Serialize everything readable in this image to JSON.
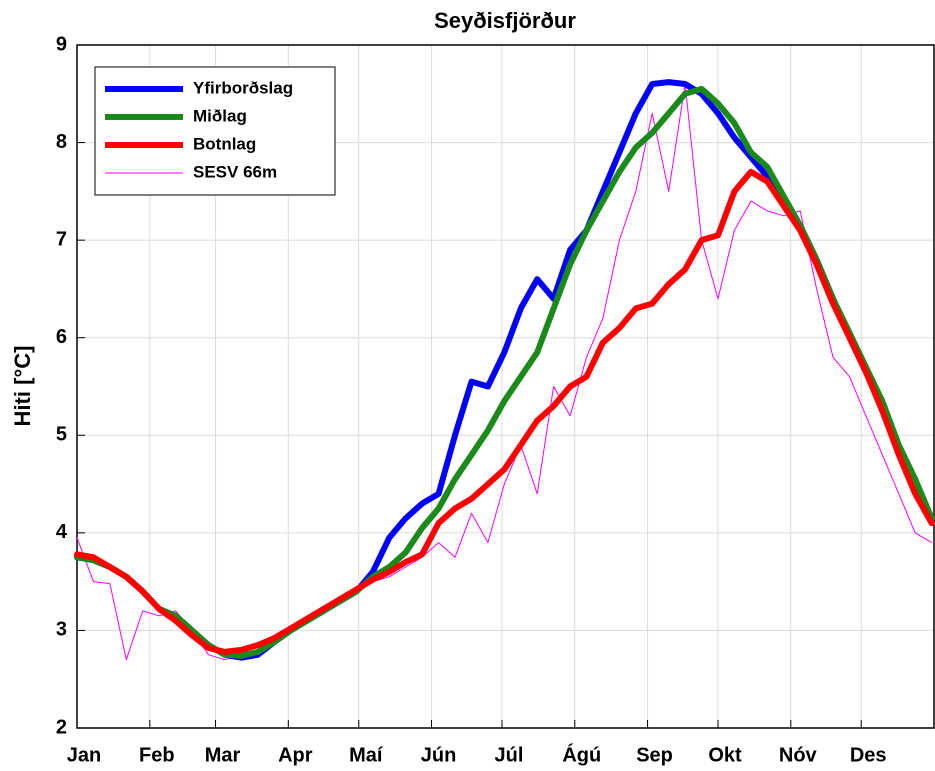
{
  "chart_data": {
    "type": "line",
    "title": "Seyðisfjörður",
    "ylabel": "Hiti [°C]",
    "x": [
      1,
      8,
      15,
      22,
      29,
      36,
      43,
      50,
      57,
      64,
      71,
      78,
      85,
      92,
      99,
      106,
      113,
      120,
      127,
      134,
      141,
      148,
      155,
      162,
      169,
      176,
      183,
      190,
      197,
      204,
      211,
      218,
      225,
      232,
      239,
      246,
      253,
      260,
      267,
      274,
      281,
      288,
      295,
      302,
      309,
      316,
      323,
      330,
      337,
      344,
      351,
      358,
      365
    ],
    "series": [
      {
        "name": "Yfirborðslag",
        "color": "#0000ff",
        "width": 6,
        "values": [
          3.75,
          3.72,
          3.65,
          3.55,
          3.4,
          3.22,
          3.15,
          3.0,
          2.85,
          2.75,
          2.72,
          2.75,
          2.88,
          3.0,
          3.1,
          3.2,
          3.3,
          3.4,
          3.6,
          3.95,
          4.15,
          4.3,
          4.4,
          5.0,
          5.55,
          5.5,
          5.85,
          6.3,
          6.6,
          6.4,
          6.9,
          7.1,
          7.5,
          7.9,
          8.3,
          8.6,
          8.62,
          8.6,
          8.5,
          8.3,
          8.05,
          7.85,
          7.65,
          7.4,
          7.15,
          6.8,
          6.4,
          6.0,
          5.65,
          5.3,
          4.85,
          4.5,
          4.15
        ]
      },
      {
        "name": "Miðlag",
        "color": "#1a8a1a",
        "width": 6,
        "values": [
          3.75,
          3.72,
          3.65,
          3.55,
          3.4,
          3.22,
          3.15,
          3.0,
          2.85,
          2.75,
          2.74,
          2.78,
          2.88,
          3.0,
          3.1,
          3.2,
          3.3,
          3.4,
          3.55,
          3.65,
          3.8,
          4.05,
          4.25,
          4.55,
          4.8,
          5.05,
          5.35,
          5.6,
          5.85,
          6.3,
          6.75,
          7.1,
          7.4,
          7.7,
          7.95,
          8.1,
          8.3,
          8.5,
          8.55,
          8.4,
          8.2,
          7.9,
          7.75,
          7.45,
          7.15,
          6.8,
          6.4,
          6.05,
          5.7,
          5.35,
          4.9,
          4.55,
          4.15
        ]
      },
      {
        "name": "Botnlag",
        "color": "#ff0000",
        "width": 6,
        "values": [
          3.78,
          3.75,
          3.65,
          3.55,
          3.4,
          3.22,
          3.1,
          2.95,
          2.82,
          2.78,
          2.8,
          2.85,
          2.92,
          3.02,
          3.12,
          3.22,
          3.32,
          3.42,
          3.52,
          3.6,
          3.7,
          3.78,
          4.1,
          4.25,
          4.35,
          4.5,
          4.65,
          4.9,
          5.15,
          5.3,
          5.5,
          5.6,
          5.95,
          6.1,
          6.3,
          6.35,
          6.55,
          6.7,
          7.0,
          7.05,
          7.5,
          7.7,
          7.6,
          7.35,
          7.1,
          6.75,
          6.35,
          6.0,
          5.65,
          5.25,
          4.8,
          4.4,
          4.1
        ]
      },
      {
        "name": "SESV 66m",
        "color": "#ff00ff",
        "width": 1,
        "values": [
          3.95,
          3.5,
          3.48,
          2.7,
          3.2,
          3.15,
          3.2,
          3.0,
          2.75,
          2.7,
          2.75,
          2.85,
          2.95,
          3.05,
          3.1,
          3.2,
          3.3,
          3.4,
          3.5,
          3.55,
          3.65,
          3.75,
          3.9,
          3.75,
          4.2,
          3.9,
          4.5,
          4.9,
          4.4,
          5.5,
          5.2,
          5.8,
          6.2,
          7.0,
          7.5,
          8.3,
          7.5,
          8.6,
          7.0,
          6.4,
          7.1,
          7.4,
          7.3,
          7.25,
          7.3,
          6.5,
          5.8,
          5.6,
          5.2,
          4.8,
          4.4,
          4.0,
          3.9
        ]
      }
    ],
    "xlim": [
      1,
      366
    ],
    "xticks": [
      {
        "value": 1,
        "label": "Jan"
      },
      {
        "value": 32,
        "label": "Feb"
      },
      {
        "value": 60,
        "label": "Mar"
      },
      {
        "value": 91,
        "label": "Apr"
      },
      {
        "value": 121,
        "label": "Maí"
      },
      {
        "value": 152,
        "label": "Jún"
      },
      {
        "value": 182,
        "label": "Júl"
      },
      {
        "value": 213,
        "label": "Ágú"
      },
      {
        "value": 244,
        "label": "Sep"
      },
      {
        "value": 274,
        "label": "Okt"
      },
      {
        "value": 305,
        "label": "Nóv"
      },
      {
        "value": 335,
        "label": "Des"
      }
    ],
    "ylim": [
      2,
      9
    ],
    "yticks": [
      2,
      3,
      4,
      5,
      6,
      7,
      8,
      9
    ],
    "grid": true,
    "legend": "northwest"
  }
}
